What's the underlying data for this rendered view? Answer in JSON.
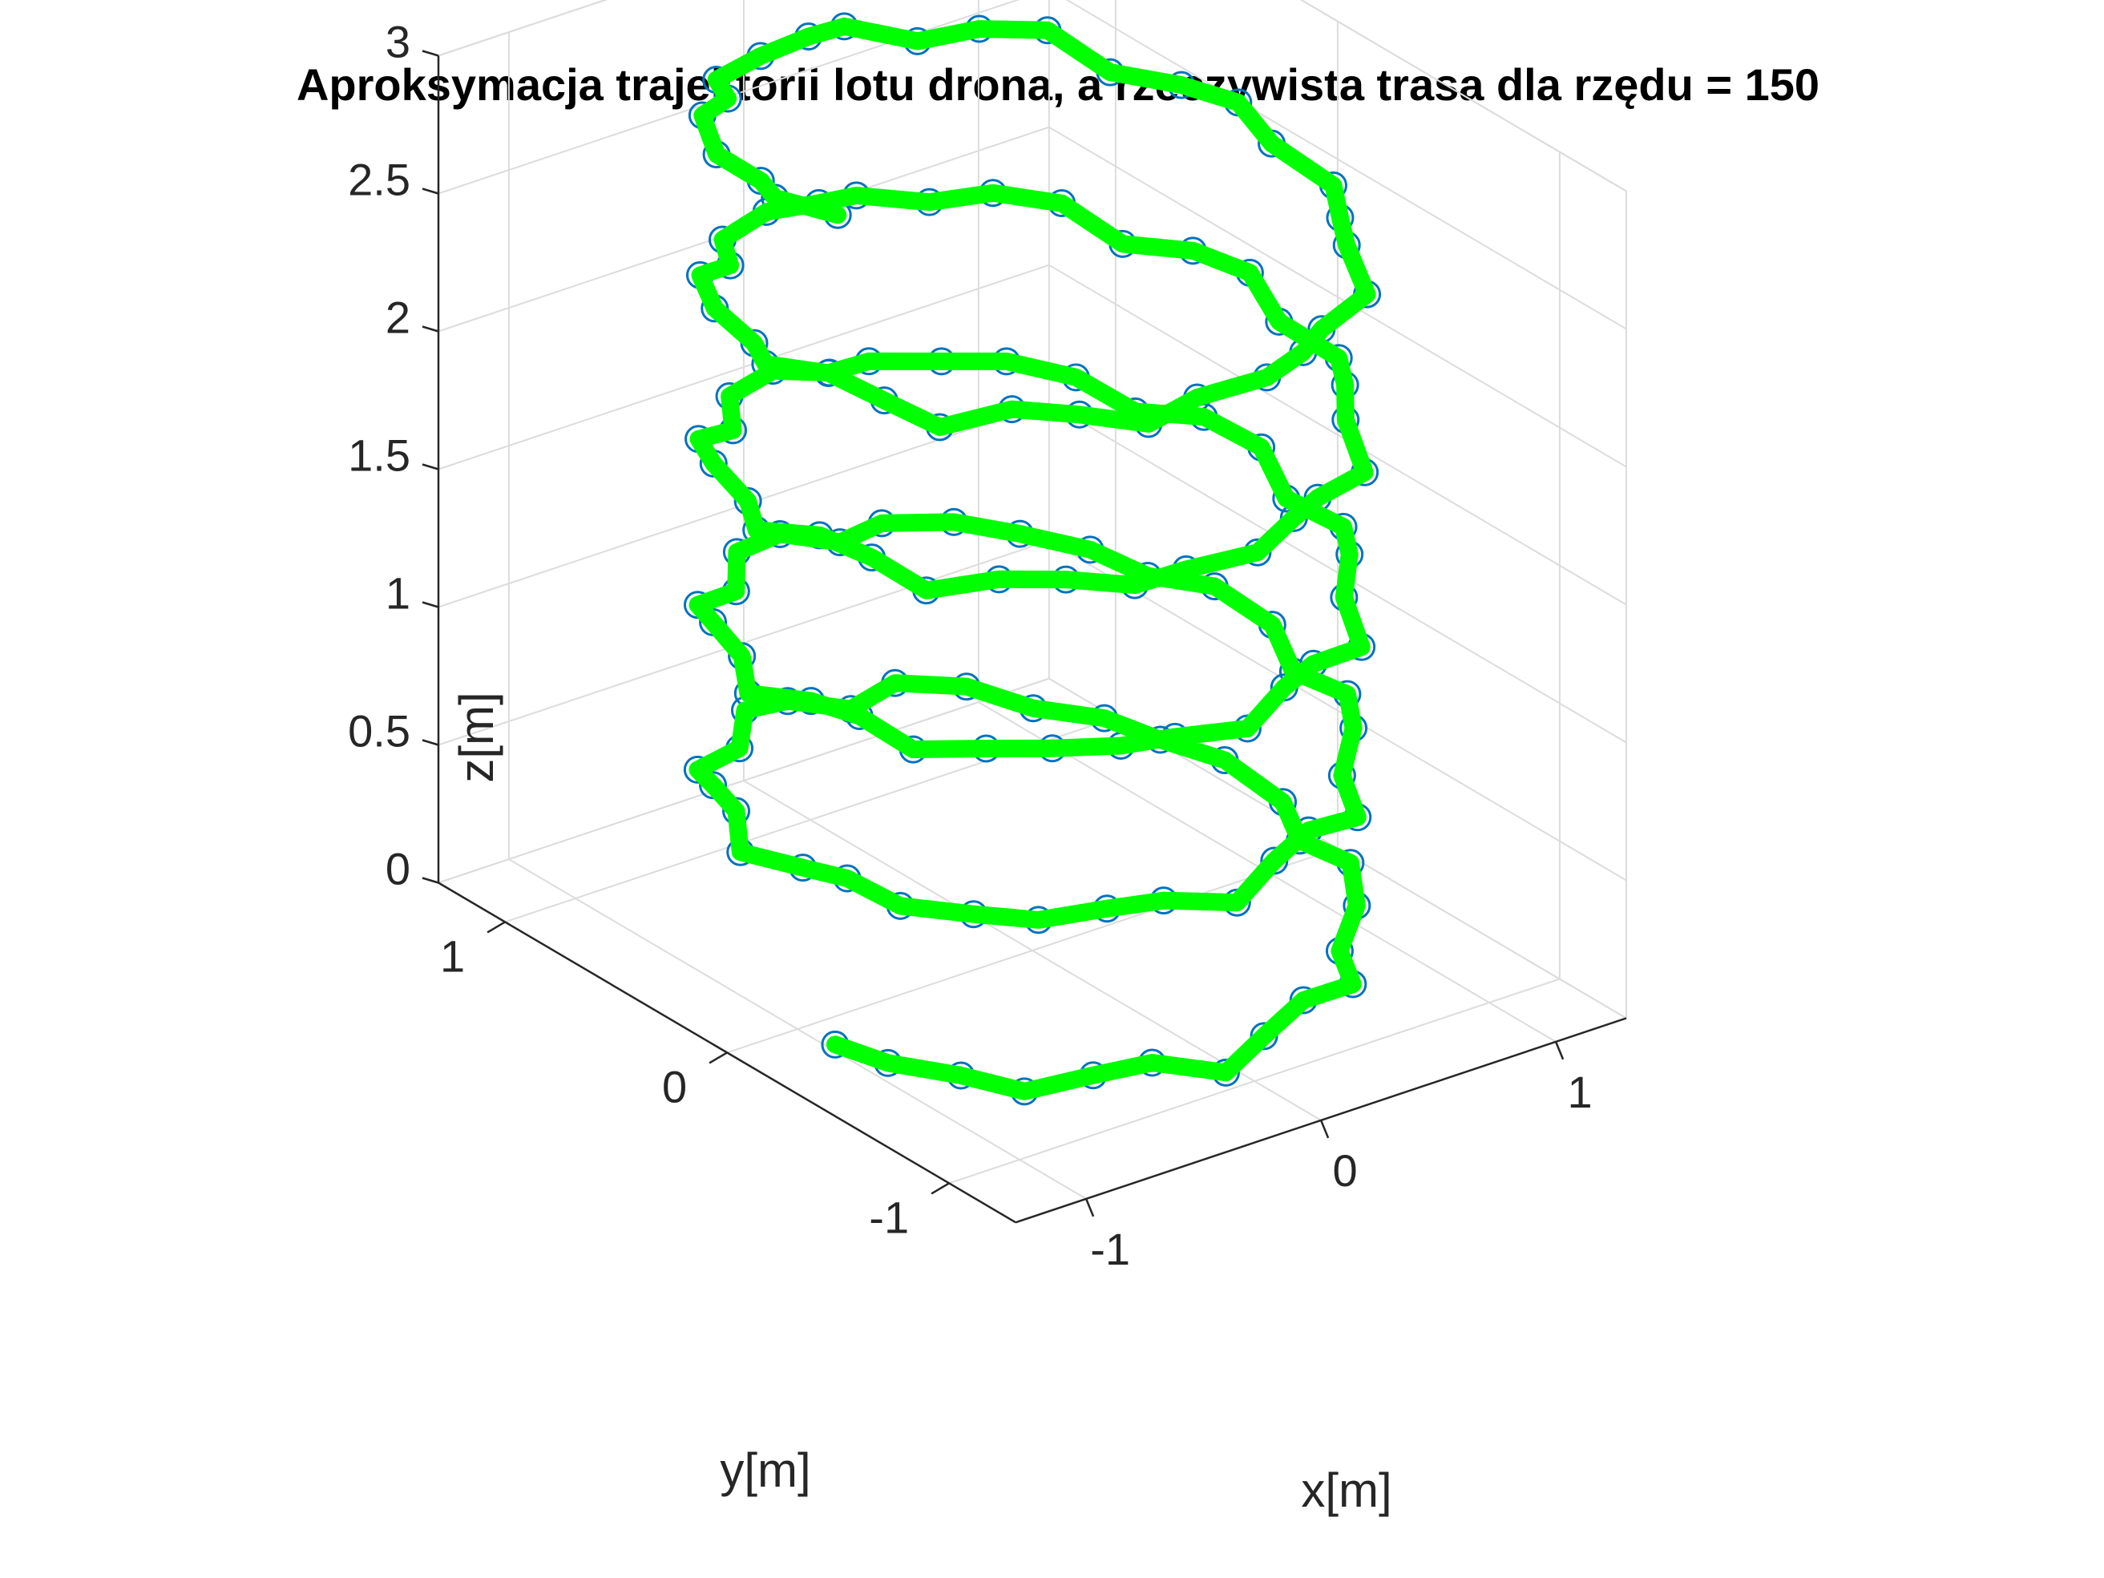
{
  "chart_data": {
    "type": "line3d",
    "title": "Aproksymacja trajektorii lotu drona, a rzeczywista trasa dla rzędu = 150",
    "xlabel": "x[m]",
    "ylabel": "y[m]",
    "zlabel": "z[m]",
    "xlim": [
      -1.3,
      1.3
    ],
    "ylim": [
      -1.3,
      1.3
    ],
    "zlim": [
      0,
      3
    ],
    "xticks": [
      "-1",
      "0",
      "1"
    ],
    "yticks": [
      "-1",
      "0",
      "1"
    ],
    "zticks": [
      "0",
      "0.5",
      "1",
      "1.5",
      "2",
      "2.5",
      "3"
    ],
    "grid": true,
    "series": [
      {
        "role": "approximation",
        "style": "thick line",
        "color": "#00ff00",
        "helix": {
          "radius": 1.0,
          "z_start": 0.0,
          "z_end": 3.0,
          "turns": 5,
          "points": 150
        }
      },
      {
        "role": "measured",
        "style": "circle markers",
        "color": "#0072bd",
        "helix": {
          "radius": 1.0,
          "z_start": 0.0,
          "z_end": 3.0,
          "turns": 5,
          "points": 150
        }
      }
    ]
  }
}
